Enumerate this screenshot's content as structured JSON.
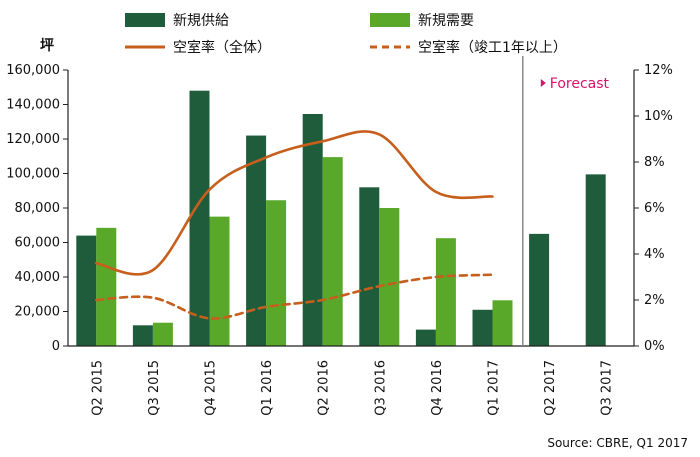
{
  "chart_data": {
    "type": "bar",
    "categories": [
      "Q2 2015",
      "Q3 2015",
      "Q4 2015",
      "Q1 2016",
      "Q2 2016",
      "Q3 2016",
      "Q4 2016",
      "Q1 2017",
      "Q2 2017",
      "Q3 2017"
    ],
    "series": [
      {
        "name": "新規供給",
        "kind": "bar",
        "axis": "left",
        "color": "#1f5c3b",
        "values": [
          64000,
          12000,
          148000,
          122000,
          134500,
          92000,
          9500,
          21000,
          65000,
          99500
        ]
      },
      {
        "name": "新規需要",
        "kind": "bar",
        "axis": "left",
        "color": "#5aa82a",
        "values": [
          68500,
          13500,
          75000,
          84500,
          109500,
          80000,
          62500,
          26500,
          null,
          null
        ]
      },
      {
        "name": "空室率（全体）",
        "kind": "line",
        "axis": "right",
        "color": "#c65f1c",
        "dash": "solid",
        "values": [
          3.6,
          3.3,
          6.8,
          8.2,
          8.9,
          9.2,
          6.7,
          6.5,
          null,
          null
        ]
      },
      {
        "name": "空室率（竣工1年以上）",
        "kind": "line",
        "axis": "right",
        "color": "#c65f1c",
        "dash": "dashed",
        "values": [
          2.0,
          2.1,
          1.2,
          1.7,
          2.0,
          2.6,
          3.0,
          3.1,
          null,
          null
        ]
      }
    ],
    "yleft": {
      "label": "坪",
      "ylim": [
        0,
        160000
      ],
      "ticks": [
        "0",
        "20,000",
        "40,000",
        "60,000",
        "80,000",
        "100,000",
        "120,000",
        "140,000",
        "160,000"
      ]
    },
    "yright": {
      "ylim": [
        0,
        12
      ],
      "ticks": [
        "0%",
        "2%",
        "4%",
        "6%",
        "8%",
        "10%",
        "12%"
      ]
    },
    "forecast_label": "Forecast",
    "forecast_start_after": "Q1 2017",
    "source": "Source:  CBRE,  Q1  2017",
    "grid": false,
    "legend_position": "top"
  }
}
